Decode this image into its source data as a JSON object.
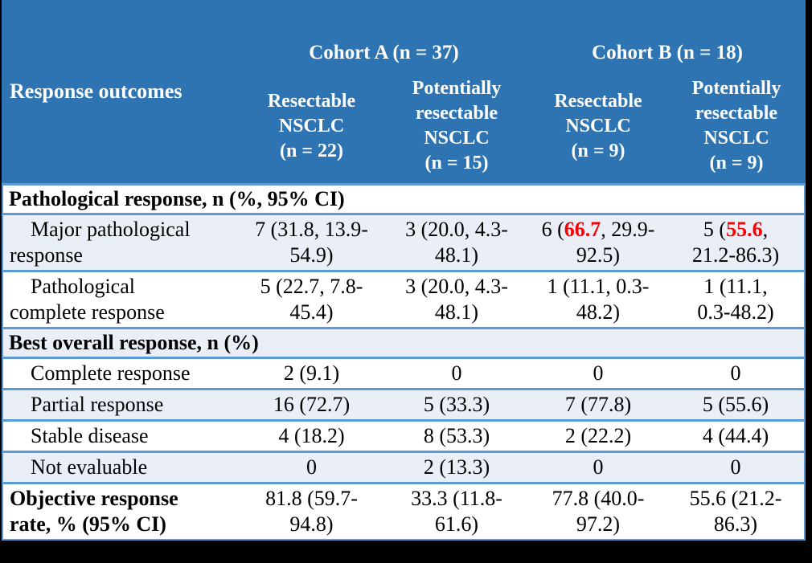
{
  "colors": {
    "header_bg": "#2F74B2",
    "border": "#5B9BD5",
    "shade_row_bg": "#E9EEF7",
    "highlight_text": "#FF0000",
    "header_text": "#FFFFFF",
    "body_text": "#000000",
    "frame_bg": "#000000"
  },
  "header": {
    "row_label_column": "Response outcomes",
    "groups": [
      {
        "label": "Cohort A (n = 37)"
      },
      {
        "label": "Cohort B (n = 18)"
      }
    ],
    "columns": [
      "Resectable\nNSCLC\n(n = 22)",
      "Potentially\nresectable\nNSCLC\n(n = 15)",
      "Resectable\nNSCLC\n(n = 9)",
      "Potentially\nresectable\nNSCLC\n(n = 9)"
    ]
  },
  "rows": [
    {
      "type": "section",
      "label": "Pathological response, n (%, 95% CI)",
      "shaded": false
    },
    {
      "type": "data",
      "label": "Major pathological\nresponse",
      "indent": true,
      "shaded": true,
      "tall": true,
      "cells": [
        [
          {
            "t": "7 (31.8, 13.9-\n54.9)"
          }
        ],
        [
          {
            "t": "3 (20.0, 4.3-\n48.1)"
          }
        ],
        [
          {
            "t": "6 ("
          },
          {
            "t": "66.7",
            "highlight": true
          },
          {
            "t": ", 29.9-\n92.5)"
          }
        ],
        [
          {
            "t": "5 ("
          },
          {
            "t": "55.6",
            "highlight": true
          },
          {
            "t": ",\n21.2-86.3)"
          }
        ]
      ]
    },
    {
      "type": "data",
      "label": "Pathological\ncomplete response",
      "indent": true,
      "shaded": false,
      "tall": true,
      "cells": [
        [
          {
            "t": "5 (22.7, 7.8-\n45.4)"
          }
        ],
        [
          {
            "t": "3 (20.0, 4.3-\n48.1)"
          }
        ],
        [
          {
            "t": "1 (11.1, 0.3-\n48.2)"
          }
        ],
        [
          {
            "t": "1 (11.1,\n0.3-48.2)"
          }
        ]
      ]
    },
    {
      "type": "section",
      "label": "Best overall response, n (%)",
      "shaded": true
    },
    {
      "type": "data",
      "label": "Complete response",
      "indent": true,
      "shaded": false,
      "tall": false,
      "cells": [
        [
          {
            "t": "2 (9.1)"
          }
        ],
        [
          {
            "t": "0"
          }
        ],
        [
          {
            "t": "0"
          }
        ],
        [
          {
            "t": "0"
          }
        ]
      ]
    },
    {
      "type": "data",
      "label": "Partial response",
      "indent": true,
      "shaded": true,
      "tall": false,
      "cells": [
        [
          {
            "t": "16 (72.7)"
          }
        ],
        [
          {
            "t": "5 (33.3)"
          }
        ],
        [
          {
            "t": "7 (77.8)"
          }
        ],
        [
          {
            "t": "5 (55.6)"
          }
        ]
      ]
    },
    {
      "type": "data",
      "label": "Stable disease",
      "indent": true,
      "shaded": false,
      "tall": false,
      "cells": [
        [
          {
            "t": "4 (18.2)"
          }
        ],
        [
          {
            "t": "8 (53.3)"
          }
        ],
        [
          {
            "t": "2 (22.2)"
          }
        ],
        [
          {
            "t": "4 (44.4)"
          }
        ]
      ]
    },
    {
      "type": "data",
      "label": "Not evaluable",
      "indent": true,
      "shaded": true,
      "tall": false,
      "cells": [
        [
          {
            "t": "0"
          }
        ],
        [
          {
            "t": "2 (13.3)"
          }
        ],
        [
          {
            "t": "0"
          }
        ],
        [
          {
            "t": "0"
          }
        ]
      ]
    },
    {
      "type": "data",
      "label": "Objective response\nrate, % (95% CI)",
      "indent": false,
      "bold_label": true,
      "shaded": false,
      "tall": true,
      "cells": [
        [
          {
            "t": "81.8 (59.7-\n94.8)"
          }
        ],
        [
          {
            "t": "33.3 (11.8-\n61.6)"
          }
        ],
        [
          {
            "t": "77.8 (40.0-\n97.2)"
          }
        ],
        [
          {
            "t": "55.6 (21.2-\n86.3)"
          }
        ]
      ]
    }
  ]
}
